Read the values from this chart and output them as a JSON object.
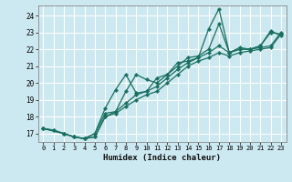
{
  "xlabel": "Humidex (Indice chaleur)",
  "ylabel": "",
  "bg_color": "#cce8f0",
  "grid_color": "#ffffff",
  "line_color": "#1a7060",
  "xlim": [
    -0.5,
    23.5
  ],
  "ylim": [
    16.5,
    24.6
  ],
  "xticks": [
    0,
    1,
    2,
    3,
    4,
    5,
    6,
    7,
    8,
    9,
    10,
    11,
    12,
    13,
    14,
    15,
    16,
    17,
    18,
    19,
    20,
    21,
    22,
    23
  ],
  "yticks": [
    17,
    18,
    19,
    20,
    21,
    22,
    23,
    24
  ],
  "lines": [
    {
      "x": [
        0,
        1,
        2,
        3,
        4,
        5,
        6,
        7,
        8,
        9,
        10,
        11,
        12,
        13,
        14,
        15,
        16,
        17,
        18,
        19,
        20,
        21,
        22,
        23
      ],
      "y": [
        17.3,
        17.2,
        17.0,
        16.8,
        16.7,
        17.0,
        18.5,
        19.6,
        20.5,
        19.4,
        19.5,
        20.3,
        20.5,
        21.2,
        21.3,
        21.5,
        23.2,
        24.4,
        21.8,
        22.0,
        22.0,
        22.2,
        23.0,
        22.9
      ]
    },
    {
      "x": [
        0,
        1,
        2,
        3,
        4,
        5,
        6,
        7,
        8,
        9,
        10,
        11,
        12,
        13,
        14,
        15,
        16,
        17,
        18,
        19,
        20,
        21,
        22,
        23
      ],
      "y": [
        17.3,
        17.2,
        17.0,
        16.8,
        16.7,
        17.0,
        18.2,
        18.3,
        19.5,
        20.5,
        20.2,
        20.0,
        20.5,
        21.0,
        21.5,
        21.6,
        22.0,
        23.5,
        21.8,
        22.1,
        22.0,
        22.2,
        23.1,
        22.8
      ]
    },
    {
      "x": [
        0,
        2,
        3,
        4,
        5,
        6,
        7,
        8,
        9,
        10,
        11,
        12,
        13,
        14,
        15,
        16,
        17,
        18,
        19,
        20,
        21,
        22,
        23
      ],
      "y": [
        17.3,
        17.0,
        16.8,
        16.7,
        16.8,
        18.0,
        18.3,
        18.8,
        19.3,
        19.5,
        19.8,
        20.3,
        20.8,
        21.2,
        21.5,
        21.8,
        22.2,
        21.8,
        22.0,
        22.0,
        22.1,
        22.2,
        23.0
      ]
    },
    {
      "x": [
        0,
        2,
        3,
        4,
        5,
        6,
        7,
        8,
        9,
        10,
        11,
        12,
        13,
        14,
        15,
        16,
        17,
        18,
        19,
        20,
        21,
        22,
        23
      ],
      "y": [
        17.3,
        17.0,
        16.8,
        16.7,
        16.8,
        18.0,
        18.2,
        18.6,
        19.0,
        19.3,
        19.5,
        20.0,
        20.5,
        21.0,
        21.3,
        21.5,
        21.8,
        21.6,
        21.8,
        21.9,
        22.0,
        22.1,
        22.9
      ]
    }
  ]
}
